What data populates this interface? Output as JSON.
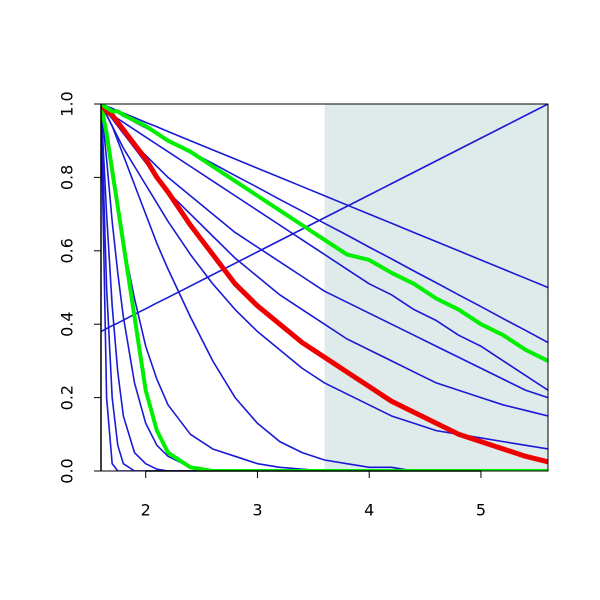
{
  "chart_data": {
    "type": "line",
    "x": [
      1.6,
      1.65,
      1.7,
      1.75,
      1.8,
      1.9,
      2.0,
      2.1,
      2.2,
      2.4,
      2.6,
      2.8,
      3.0,
      3.2,
      3.4,
      3.6,
      3.8,
      4.0,
      4.2,
      4.4,
      4.6,
      4.8,
      5.0,
      5.2,
      5.4,
      5.6
    ],
    "xlim": [
      1.6,
      5.6
    ],
    "xticks": [
      2,
      3,
      4,
      5
    ],
    "ylim": [
      0,
      1
    ],
    "yticks": [
      {
        "value": 0,
        "label": "0.0"
      },
      0.2,
      0.4,
      0.6,
      0.8,
      {
        "value": 1,
        "label": "1.0"
      }
    ],
    "highlight_xrange": [
      3.6,
      5.6
    ],
    "highlight_color": "#dfeaea",
    "series": [
      {
        "color": "#1a1ad6",
        "line_width": 1.6,
        "values": [
          1.0,
          0.994,
          0.988,
          0.981,
          0.975,
          0.963,
          0.95,
          0.938,
          0.925,
          0.9,
          0.875,
          0.85,
          0.825,
          0.8,
          0.775,
          0.75,
          0.725,
          0.7,
          0.675,
          0.65,
          0.625,
          0.6,
          0.575,
          0.55,
          0.525,
          0.5
        ]
      },
      {
        "color": "#1a1ad6",
        "line_width": 1.6,
        "values": [
          0.38,
          0.388,
          0.396,
          0.403,
          0.411,
          0.427,
          0.442,
          0.458,
          0.473,
          0.504,
          0.535,
          0.566,
          0.597,
          0.628,
          0.659,
          0.69,
          0.721,
          0.752,
          0.783,
          0.814,
          0.845,
          0.876,
          0.907,
          0.938,
          0.969,
          1.0
        ]
      },
      {
        "color": "#1a1ad6",
        "line_width": 1.6,
        "values": [
          1.0,
          0.992,
          0.984,
          0.976,
          0.968,
          0.951,
          0.935,
          0.919,
          0.903,
          0.87,
          0.838,
          0.805,
          0.773,
          0.74,
          0.708,
          0.675,
          0.643,
          0.61,
          0.578,
          0.545,
          0.513,
          0.48,
          0.448,
          0.415,
          0.383,
          0.35
        ]
      },
      {
        "color": "#1a1ad6",
        "line_width": 1.6,
        "values": [
          1.0,
          0.98,
          0.97,
          0.96,
          0.95,
          0.93,
          0.91,
          0.89,
          0.87,
          0.83,
          0.79,
          0.75,
          0.71,
          0.67,
          0.63,
          0.59,
          0.55,
          0.51,
          0.48,
          0.44,
          0.41,
          0.37,
          0.34,
          0.3,
          0.26,
          0.22
        ]
      },
      {
        "color": "#1a1ad6",
        "line_width": 1.6,
        "values": [
          1.0,
          0.98,
          0.96,
          0.94,
          0.92,
          0.89,
          0.86,
          0.83,
          0.8,
          0.75,
          0.7,
          0.65,
          0.61,
          0.57,
          0.53,
          0.49,
          0.46,
          0.43,
          0.4,
          0.37,
          0.34,
          0.31,
          0.28,
          0.25,
          0.22,
          0.2
        ]
      },
      {
        "color": "#1a1ad6",
        "line_width": 1.6,
        "values": [
          1.0,
          0.98,
          0.96,
          0.94,
          0.92,
          0.88,
          0.84,
          0.8,
          0.76,
          0.7,
          0.64,
          0.58,
          0.53,
          0.48,
          0.44,
          0.4,
          0.36,
          0.33,
          0.3,
          0.27,
          0.24,
          0.22,
          0.2,
          0.18,
          0.165,
          0.15
        ]
      },
      {
        "color": "#1a1ad6",
        "line_width": 1.6,
        "values": [
          1.0,
          0.97,
          0.94,
          0.91,
          0.88,
          0.83,
          0.78,
          0.73,
          0.68,
          0.59,
          0.51,
          0.44,
          0.38,
          0.33,
          0.28,
          0.24,
          0.21,
          0.18,
          0.15,
          0.13,
          0.11,
          0.1,
          0.09,
          0.08,
          0.07,
          0.06
        ]
      },
      {
        "color": "#1a1ad6",
        "line_width": 1.6,
        "values": [
          1.0,
          0.97,
          0.94,
          0.9,
          0.86,
          0.78,
          0.7,
          0.62,
          0.55,
          0.42,
          0.3,
          0.2,
          0.13,
          0.08,
          0.05,
          0.03,
          0.02,
          0.01,
          0.01,
          0,
          0,
          0,
          0,
          0,
          0,
          0
        ]
      },
      {
        "color": "#1a1ad6",
        "line_width": 1.6,
        "values": [
          1.0,
          0.9,
          0.8,
          0.71,
          0.62,
          0.47,
          0.34,
          0.25,
          0.18,
          0.1,
          0.06,
          0.04,
          0.02,
          0.01,
          0.005,
          0,
          0,
          0,
          0,
          0,
          0,
          0,
          0,
          0,
          0,
          0
        ]
      },
      {
        "color": "#1a1ad6",
        "line_width": 1.6,
        "values": [
          1.0,
          0.85,
          0.68,
          0.54,
          0.42,
          0.24,
          0.13,
          0.07,
          0.04,
          0.01,
          0,
          0,
          0,
          0,
          0,
          0,
          0,
          0,
          0,
          0,
          0,
          0,
          0,
          0,
          0,
          0
        ]
      },
      {
        "color": "#1a1ad6",
        "line_width": 1.6,
        "values": [
          1.0,
          0.7,
          0.45,
          0.27,
          0.15,
          0.05,
          0.02,
          0.005,
          0,
          0,
          0,
          0,
          0,
          0,
          0,
          0,
          0,
          0,
          0,
          0,
          0,
          0,
          0,
          0,
          0,
          0
        ]
      },
      {
        "color": "#1a1ad6",
        "line_width": 1.6,
        "values": [
          1.0,
          0.5,
          0.2,
          0.07,
          0.02,
          0,
          0,
          0,
          0,
          0,
          0,
          0,
          0,
          0,
          0,
          0,
          0,
          0,
          0,
          0,
          0,
          0,
          0,
          0,
          0,
          0
        ]
      },
      {
        "color": "#1a1ad6",
        "line_width": 1.6,
        "values": [
          1.0,
          0.2,
          0.02,
          0,
          0,
          0,
          0,
          0,
          0,
          0,
          0,
          0,
          0,
          0,
          0,
          0,
          0,
          0,
          0,
          0,
          0,
          0,
          0,
          0,
          0,
          0
        ]
      },
      {
        "color": "#00ee00",
        "line_width": 4,
        "values": [
          1.0,
          0.92,
          0.82,
          0.72,
          0.62,
          0.42,
          0.22,
          0.11,
          0.05,
          0.01,
          0,
          0,
          0,
          0,
          0,
          0,
          0,
          0,
          0,
          0,
          0,
          0,
          0,
          0,
          0,
          0
        ]
      },
      {
        "color": "#ee0000",
        "line_width": 5,
        "values": [
          1.0,
          0.98,
          0.97,
          0.95,
          0.93,
          0.89,
          0.85,
          0.8,
          0.76,
          0.67,
          0.59,
          0.51,
          0.45,
          0.4,
          0.35,
          0.31,
          0.27,
          0.23,
          0.19,
          0.16,
          0.13,
          0.1,
          0.08,
          0.06,
          0.04,
          0.025
        ]
      },
      {
        "color": "#00ee00",
        "line_width": 4,
        "values": [
          1.0,
          0.99,
          0.98,
          0.98,
          0.97,
          0.955,
          0.94,
          0.92,
          0.9,
          0.87,
          0.83,
          0.79,
          0.75,
          0.71,
          0.67,
          0.63,
          0.59,
          0.575,
          0.54,
          0.51,
          0.47,
          0.44,
          0.4,
          0.37,
          0.33,
          0.3
        ]
      }
    ]
  }
}
